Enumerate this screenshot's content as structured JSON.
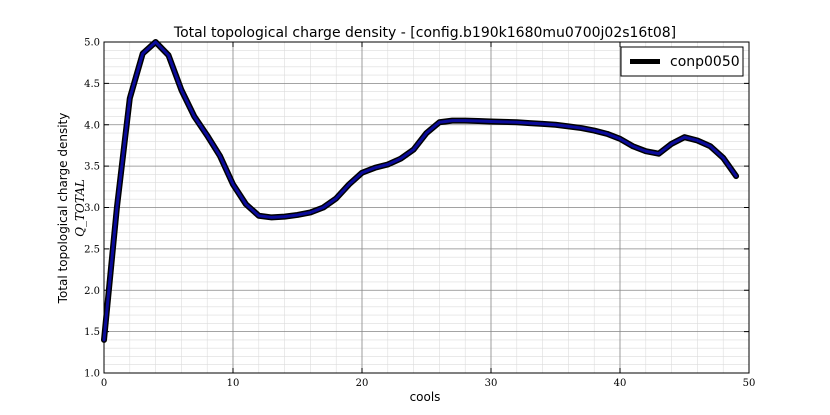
{
  "chart_data": {
    "type": "line",
    "title": "Total topological charge density - [config.b190k1680mu0700j02s16t08]",
    "xlabel": "cools",
    "ylabel": "Total topological charge density",
    "ylabel_sub": "Q_TOTAL",
    "xlim": [
      0,
      50
    ],
    "ylim": [
      1.0,
      5.0
    ],
    "xticks": [
      0,
      10,
      20,
      30,
      40,
      50
    ],
    "yticks": [
      1.0,
      1.5,
      2.0,
      2.5,
      3.0,
      3.5,
      4.0,
      4.5,
      5.0
    ],
    "grid": true,
    "legend_position": "top-right",
    "series": [
      {
        "name": "conp0050",
        "color": "#0b0b9a",
        "x": [
          0,
          1,
          2,
          3,
          4,
          5,
          6,
          7,
          8,
          9,
          10,
          11,
          12,
          13,
          14,
          15,
          16,
          17,
          18,
          19,
          20,
          21,
          22,
          23,
          24,
          25,
          26,
          27,
          28,
          29,
          30,
          31,
          32,
          33,
          34,
          35,
          36,
          37,
          38,
          39,
          40,
          41,
          42,
          43,
          44,
          45,
          46,
          47,
          48,
          49
        ],
        "values": [
          1.4,
          3.0,
          4.32,
          4.86,
          5.0,
          4.84,
          4.42,
          4.1,
          3.87,
          3.62,
          3.28,
          3.04,
          2.9,
          2.88,
          2.89,
          2.91,
          2.94,
          3.0,
          3.11,
          3.28,
          3.42,
          3.48,
          3.52,
          3.59,
          3.7,
          3.9,
          4.03,
          4.05,
          4.05,
          4.045,
          4.04,
          4.035,
          4.03,
          4.02,
          4.01,
          4.0,
          3.98,
          3.96,
          3.93,
          3.89,
          3.83,
          3.74,
          3.68,
          3.65,
          3.77,
          3.85,
          3.81,
          3.74,
          3.6,
          3.38
        ]
      }
    ]
  }
}
